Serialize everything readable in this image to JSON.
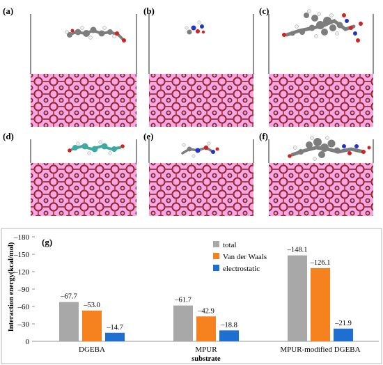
{
  "panels": [
    {
      "label": "(a)"
    },
    {
      "label": "(b)"
    },
    {
      "label": "(c)"
    },
    {
      "label": "(d)"
    },
    {
      "label": "(e)"
    },
    {
      "label": "(f)"
    }
  ],
  "colors": {
    "crystal_bg": "#f2a8e8",
    "crystal_bond": "#8b2525",
    "crystal_oxygen": "#c81e1e",
    "crystal_grid": "#c266c8",
    "molecule_carbon": "#7d7d7d",
    "molecule_hydrogen": "#f4f4f4",
    "molecule_nitrogen": "#2233cc",
    "molecule_oxygen": "#d42020",
    "molecule_carbon_cyan": "#3fa8a0"
  },
  "chart_data": {
    "type": "bar",
    "panel_label": "(g)",
    "categories": [
      "DGEBA",
      "MPUR",
      "MPUR-modified DGEBA"
    ],
    "series": [
      {
        "name": "total",
        "color": "#a8a8a8",
        "values": [
          -67.7,
          -61.7,
          -148.1
        ],
        "labels": [
          "–67.7",
          "–61.7",
          "–148.1"
        ]
      },
      {
        "name": "Van der Waals",
        "color": "#f5821e",
        "values": [
          -53.0,
          -42.9,
          -126.1
        ],
        "labels": [
          "–53.0",
          "–42.9",
          "–126.1"
        ]
      },
      {
        "name": "electrostatic",
        "color": "#1f6fd0",
        "values": [
          -14.7,
          -18.8,
          -21.9
        ],
        "labels": [
          "–14.7",
          "–18.8",
          "–21.9"
        ]
      }
    ],
    "ylabel": "Interaction energy(kcal/mol)",
    "xlabel": "substrate",
    "ylim": [
      0,
      -180
    ],
    "y_inverted": true,
    "yticks": [
      0,
      -30,
      -60,
      -90,
      -120,
      -150,
      -180
    ],
    "ytick_labels": [
      "0",
      "–30",
      "–60",
      "–90",
      "–120",
      "–150",
      "–180"
    ],
    "legend_position": "top-center",
    "grid": false
  }
}
